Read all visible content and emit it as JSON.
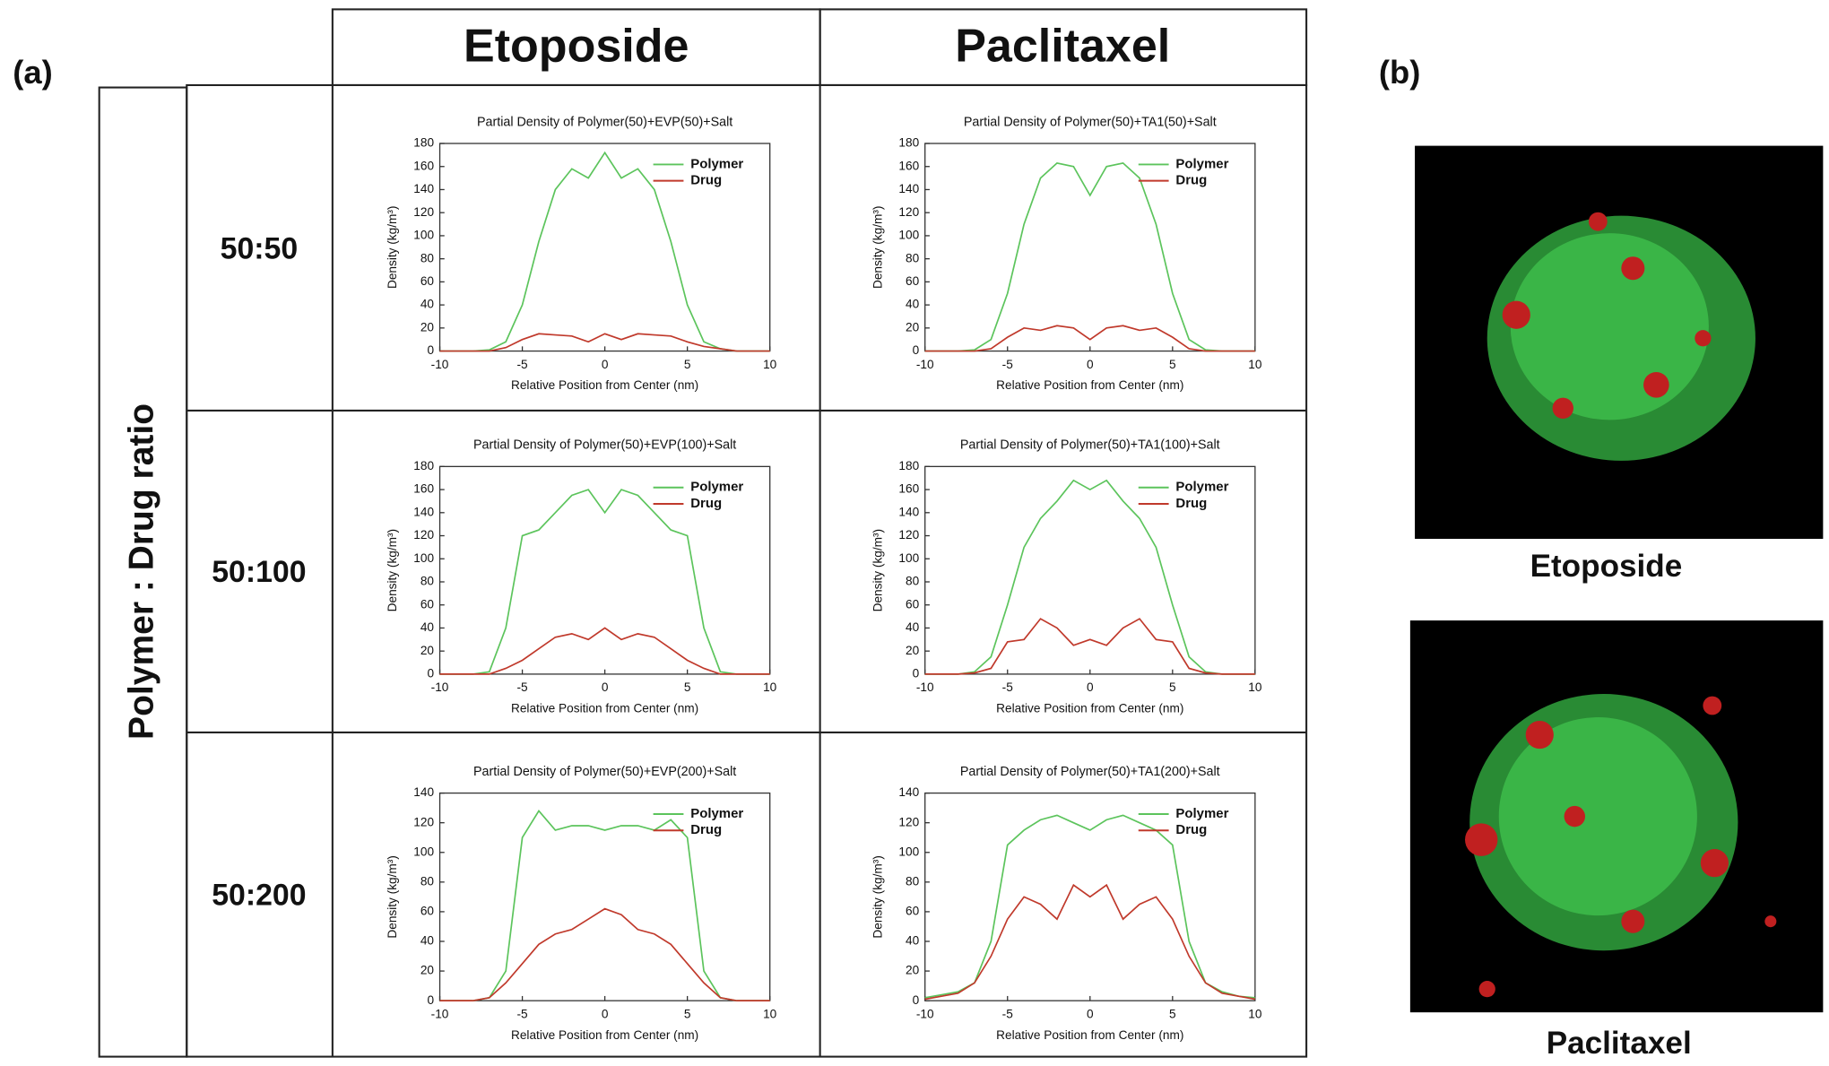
{
  "labels": {
    "a": "(a)",
    "b": "(b)"
  },
  "table": {
    "columns": [
      "Etoposide",
      "Paclitaxel"
    ],
    "row_header": "Polymer : Drug ratio",
    "rows": [
      "50:50",
      "50:100",
      "50:200"
    ]
  },
  "images": [
    {
      "caption": "Etoposide"
    },
    {
      "caption": "Paclitaxel"
    }
  ],
  "chart_data": [
    {
      "type": "line",
      "title": "Partial Density of Polymer(50)+EVP(50)+Salt",
      "x_label": "Relative Position from Center (nm)",
      "y_label": "Density (kg/m³)",
      "x": [
        -10,
        -9,
        -8,
        -7,
        -6,
        -5,
        -4,
        -3,
        -2,
        -1,
        0,
        1,
        2,
        3,
        4,
        5,
        6,
        7,
        8,
        9,
        10
      ],
      "series": [
        {
          "name": "Polymer",
          "color": "#5cc45c",
          "values": [
            0,
            0,
            0,
            1,
            8,
            40,
            95,
            140,
            158,
            150,
            172,
            150,
            158,
            140,
            95,
            40,
            8,
            2,
            0,
            0,
            0
          ]
        },
        {
          "name": "Drug",
          "color": "#c0392b",
          "values": [
            0,
            0,
            0,
            0,
            3,
            10,
            15,
            14,
            13,
            8,
            15,
            10,
            15,
            14,
            13,
            8,
            4,
            2,
            0,
            0,
            0
          ]
        }
      ],
      "xlim": [
        -10,
        10
      ],
      "ylim": [
        0,
        180
      ],
      "xticks": [
        -10,
        -5,
        0,
        5,
        10
      ],
      "yticks": [
        0,
        20,
        40,
        60,
        80,
        100,
        120,
        140,
        160,
        180
      ]
    },
    {
      "type": "line",
      "title": "Partial Density of Polymer(50)+TA1(50)+Salt",
      "x_label": "Relative Position from Center (nm)",
      "y_label": "Density (kg/m³)",
      "x": [
        -10,
        -9,
        -8,
        -7,
        -6,
        -5,
        -4,
        -3,
        -2,
        -1,
        0,
        1,
        2,
        3,
        4,
        5,
        6,
        7,
        8,
        9,
        10
      ],
      "series": [
        {
          "name": "Polymer",
          "color": "#5cc45c",
          "values": [
            0,
            0,
            0,
            1,
            10,
            50,
            110,
            150,
            163,
            160,
            135,
            160,
            163,
            150,
            110,
            50,
            10,
            1,
            0,
            0,
            0
          ]
        },
        {
          "name": "Drug",
          "color": "#c0392b",
          "values": [
            0,
            0,
            0,
            0,
            2,
            12,
            20,
            18,
            22,
            20,
            10,
            20,
            22,
            18,
            20,
            12,
            2,
            0,
            0,
            0,
            0
          ]
        }
      ],
      "xlim": [
        -10,
        10
      ],
      "ylim": [
        0,
        180
      ],
      "xticks": [
        -10,
        -5,
        0,
        5,
        10
      ],
      "yticks": [
        0,
        20,
        40,
        60,
        80,
        100,
        120,
        140,
        160,
        180
      ]
    },
    {
      "type": "line",
      "title": "Partial Density of Polymer(50)+EVP(100)+Salt",
      "x_label": "Relative Position from Center (nm)",
      "y_label": "Density (kg/m³)",
      "x": [
        -10,
        -9,
        -8,
        -7,
        -6,
        -5,
        -4,
        -3,
        -2,
        -1,
        0,
        1,
        2,
        3,
        4,
        5,
        6,
        7,
        8,
        9,
        10
      ],
      "series": [
        {
          "name": "Polymer",
          "color": "#5cc45c",
          "values": [
            0,
            0,
            0,
            2,
            40,
            120,
            125,
            140,
            155,
            160,
            140,
            160,
            155,
            140,
            125,
            120,
            40,
            2,
            0,
            0,
            0
          ]
        },
        {
          "name": "Drug",
          "color": "#c0392b",
          "values": [
            0,
            0,
            0,
            0,
            5,
            12,
            22,
            32,
            35,
            30,
            40,
            30,
            35,
            32,
            22,
            12,
            5,
            0,
            0,
            0,
            0
          ]
        }
      ],
      "xlim": [
        -10,
        10
      ],
      "ylim": [
        0,
        180
      ],
      "xticks": [
        -10,
        -5,
        0,
        5,
        10
      ],
      "yticks": [
        0,
        20,
        40,
        60,
        80,
        100,
        120,
        140,
        160,
        180
      ]
    },
    {
      "type": "line",
      "title": "Partial Density of Polymer(50)+TA1(100)+Salt",
      "x_label": "Relative Position from Center (nm)",
      "y_label": "Density (kg/m³)",
      "x": [
        -10,
        -9,
        -8,
        -7,
        -6,
        -5,
        -4,
        -3,
        -2,
        -1,
        0,
        1,
        2,
        3,
        4,
        5,
        6,
        7,
        8,
        9,
        10
      ],
      "series": [
        {
          "name": "Polymer",
          "color": "#5cc45c",
          "values": [
            0,
            0,
            0,
            2,
            15,
            60,
            110,
            135,
            150,
            168,
            160,
            168,
            150,
            135,
            110,
            60,
            15,
            2,
            0,
            0,
            0
          ]
        },
        {
          "name": "Drug",
          "color": "#c0392b",
          "values": [
            0,
            0,
            0,
            1,
            5,
            28,
            30,
            48,
            40,
            25,
            30,
            25,
            40,
            48,
            30,
            28,
            5,
            1,
            0,
            0,
            0
          ]
        }
      ],
      "xlim": [
        -10,
        10
      ],
      "ylim": [
        0,
        180
      ],
      "xticks": [
        -10,
        -5,
        0,
        5,
        10
      ],
      "yticks": [
        0,
        20,
        40,
        60,
        80,
        100,
        120,
        140,
        160,
        180
      ]
    },
    {
      "type": "line",
      "title": "Partial Density of Polymer(50)+EVP(200)+Salt",
      "x_label": "Relative Position from Center (nm)",
      "y_label": "Density (kg/m³)",
      "x": [
        -10,
        -9,
        -8,
        -7,
        -6,
        -5,
        -4,
        -3,
        -2,
        -1,
        0,
        1,
        2,
        3,
        4,
        5,
        6,
        7,
        8,
        9,
        10
      ],
      "series": [
        {
          "name": "Polymer",
          "color": "#5cc45c",
          "values": [
            0,
            0,
            0,
            2,
            20,
            110,
            128,
            115,
            118,
            118,
            115,
            118,
            118,
            115,
            122,
            110,
            20,
            2,
            0,
            0,
            0
          ]
        },
        {
          "name": "Drug",
          "color": "#c0392b",
          "values": [
            0,
            0,
            0,
            2,
            12,
            25,
            38,
            45,
            48,
            55,
            62,
            58,
            48,
            45,
            38,
            25,
            12,
            2,
            0,
            0,
            0
          ]
        }
      ],
      "xlim": [
        -10,
        10
      ],
      "ylim": [
        0,
        140
      ],
      "xticks": [
        -10,
        -5,
        0,
        5,
        10
      ],
      "yticks": [
        0,
        20,
        40,
        60,
        80,
        100,
        120,
        140
      ]
    },
    {
      "type": "line",
      "title": "Partial Density of Polymer(50)+TA1(200)+Salt",
      "x_label": "Relative Position from Center (nm)",
      "y_label": "Density (kg/m³)",
      "x": [
        -10,
        -9,
        -8,
        -7,
        -6,
        -5,
        -4,
        -3,
        -2,
        -1,
        0,
        1,
        2,
        3,
        4,
        5,
        6,
        7,
        8,
        9,
        10
      ],
      "series": [
        {
          "name": "Polymer",
          "color": "#5cc45c",
          "values": [
            2,
            4,
            6,
            12,
            40,
            105,
            115,
            122,
            125,
            120,
            115,
            122,
            125,
            120,
            115,
            105,
            40,
            12,
            6,
            3,
            2
          ]
        },
        {
          "name": "Drug",
          "color": "#c0392b",
          "values": [
            1,
            3,
            5,
            12,
            30,
            55,
            70,
            65,
            55,
            78,
            70,
            78,
            55,
            65,
            70,
            55,
            30,
            12,
            5,
            3,
            1
          ]
        }
      ],
      "xlim": [
        -10,
        10
      ],
      "ylim": [
        0,
        140
      ],
      "xticks": [
        -10,
        -5,
        0,
        5,
        10
      ],
      "yticks": [
        0,
        20,
        40,
        60,
        80,
        100,
        120,
        140
      ]
    }
  ]
}
